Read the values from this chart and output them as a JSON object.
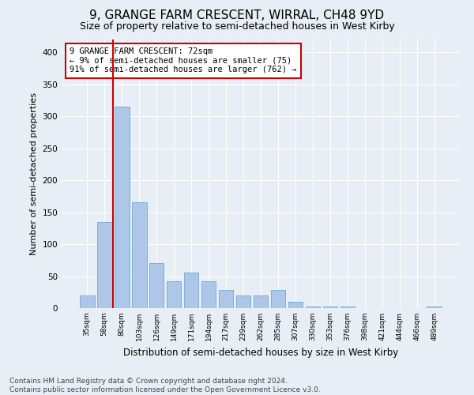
{
  "title_line1": "9, GRANGE FARM CRESCENT, WIRRAL, CH48 9YD",
  "title_line2": "Size of property relative to semi-detached houses in West Kirby",
  "xlabel": "Distribution of semi-detached houses by size in West Kirby",
  "ylabel": "Number of semi-detached properties",
  "categories": [
    "35sqm",
    "58sqm",
    "80sqm",
    "103sqm",
    "126sqm",
    "149sqm",
    "171sqm",
    "194sqm",
    "217sqm",
    "239sqm",
    "262sqm",
    "285sqm",
    "307sqm",
    "330sqm",
    "353sqm",
    "376sqm",
    "398sqm",
    "421sqm",
    "444sqm",
    "466sqm",
    "489sqm"
  ],
  "values": [
    20,
    135,
    315,
    165,
    70,
    42,
    55,
    42,
    28,
    20,
    20,
    28,
    10,
    3,
    2,
    3,
    0,
    0,
    0,
    0,
    3
  ],
  "bar_color": "#aec6e8",
  "bar_edge_color": "#5a9fd4",
  "vline_color": "#cc0000",
  "vline_x": 1.5,
  "annotation_text": "9 GRANGE FARM CRESCENT: 72sqm\n← 9% of semi-detached houses are smaller (75)\n91% of semi-detached houses are larger (762) →",
  "annotation_box_color": "#ffffff",
  "annotation_box_edge_color": "#cc0000",
  "ylim": [
    0,
    420
  ],
  "yticks": [
    0,
    50,
    100,
    150,
    200,
    250,
    300,
    350,
    400
  ],
  "bg_color": "#e8eef5",
  "plot_bg_color": "#e8eef5",
  "footer_text": "Contains HM Land Registry data © Crown copyright and database right 2024.\nContains public sector information licensed under the Open Government Licence v3.0.",
  "title_fontsize": 11,
  "subtitle_fontsize": 9,
  "annotation_fontsize": 7.5,
  "footer_fontsize": 6.5,
  "ylabel_fontsize": 8,
  "xlabel_fontsize": 8.5
}
